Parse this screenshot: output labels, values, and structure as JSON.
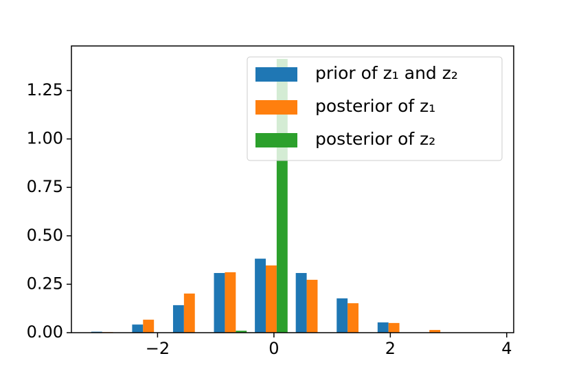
{
  "chart_data": {
    "type": "histogram",
    "bins": [
      -3.21,
      -2.507,
      -1.804,
      -1.101,
      -0.398,
      0.305,
      1.008,
      1.711,
      2.414,
      3.117
    ],
    "series": [
      {
        "name": "prior of z₁ and z₂",
        "color": "#1f77b4",
        "values": [
          0.005,
          0.042,
          0.142,
          0.308,
          0.382,
          0.308,
          0.177,
          0.053,
          0
        ]
      },
      {
        "name": "posterior of z₁",
        "color": "#ff7f0e",
        "values": [
          0.003,
          0.067,
          0.202,
          0.312,
          0.347,
          0.273,
          0.152,
          0.05,
          0.014
        ]
      },
      {
        "name": "posterior of z₂",
        "color": "#2ca02c",
        "values": [
          0,
          0,
          0,
          0.01,
          1.413,
          0,
          0,
          0,
          0
        ]
      }
    ],
    "xlim": [
      -3.48,
      4.12
    ],
    "ylim": [
      0,
      1.48
    ],
    "xticks": [
      {
        "value": -2,
        "label": "−2"
      },
      0,
      2,
      4
    ],
    "yticks": [
      {
        "value": 0,
        "label": "0.00"
      },
      {
        "value": 0.25,
        "label": "0.25"
      },
      {
        "value": 0.5,
        "label": "0.50"
      },
      {
        "value": 0.75,
        "label": "0.75"
      },
      {
        "value": 1,
        "label": "1.00"
      },
      {
        "value": 1.25,
        "label": "1.25"
      }
    ],
    "legend": "upper right"
  }
}
